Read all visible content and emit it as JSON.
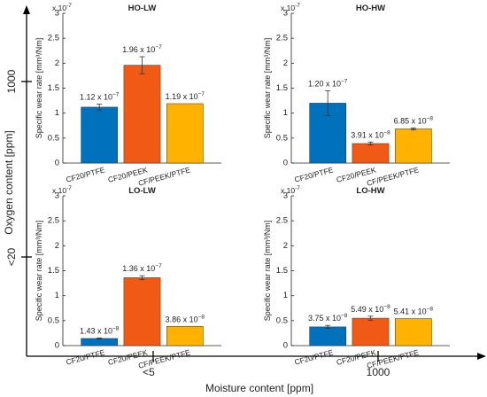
{
  "figure": {
    "x_axis_label": "Moisture content [ppm]",
    "y_axis_label": "Oxygen content [ppm]",
    "x_ticks": [
      "<5",
      "1000"
    ],
    "y_ticks": [
      "1000",
      "<20"
    ]
  },
  "chart_data": [
    {
      "type": "bar",
      "title": "HO-LW",
      "exponent_label": "x 10",
      "exponent_power": "-7",
      "ylabel": "Specific wear rate [mm³/Nm]",
      "ylim": [
        0,
        3e-07
      ],
      "yticks": [
        "0",
        "0.5",
        "1",
        "1.5",
        "2",
        "2.5",
        "3"
      ],
      "categories": [
        "CF20/PTFE",
        "CF20/PEEK",
        "CF/PEEK/PTFE"
      ],
      "values": [
        1.12e-07,
        1.96e-07,
        1.19e-07
      ],
      "errors": [
        6e-09,
        1.7e-08,
        0
      ],
      "labels": [
        "1.12 x 10",
        "1.96 x 10",
        "1.19 x 10"
      ],
      "label_powers": [
        "−7",
        "−7",
        "−7"
      ],
      "colors": [
        "#0072bd",
        "#f05a14",
        "#ffb300"
      ]
    },
    {
      "type": "bar",
      "title": "HO-HW",
      "exponent_label": "x 10",
      "exponent_power": "-7",
      "ylabel": "Specific wear rate [mm³/Nm]",
      "ylim": [
        0,
        3e-07
      ],
      "yticks": [
        "0",
        "0.5",
        "1",
        "1.5",
        "2",
        "2.5",
        "3"
      ],
      "categories": [
        "CF20/PTFE",
        "CF20/PEEK",
        "CF/PEEK/PTFE"
      ],
      "values": [
        1.2e-07,
        3.91e-08,
        6.85e-08
      ],
      "errors": [
        2.5e-08,
        3e-09,
        2e-09
      ],
      "labels": [
        "1.20 x 10",
        "3.91 x 10",
        "6.85 x 10"
      ],
      "label_powers": [
        "−7",
        "−8",
        "−8"
      ],
      "colors": [
        "#0072bd",
        "#f05a14",
        "#ffb300"
      ]
    },
    {
      "type": "bar",
      "title": "LO-LW",
      "exponent_label": "x 10",
      "exponent_power": "-7",
      "ylabel": "Specific wear rate [mm³/Nm]",
      "ylim": [
        0,
        3e-07
      ],
      "yticks": [
        "0",
        "0.5",
        "1",
        "1.5",
        "2",
        "2.5",
        "3"
      ],
      "categories": [
        "CF20/PTFE",
        "CF20/PEEK",
        "CF/PEEK/PTFE"
      ],
      "values": [
        1.43e-08,
        1.36e-07,
        3.86e-08
      ],
      "errors": [
        1e-09,
        4e-09,
        0
      ],
      "labels": [
        "1.43 x 10",
        "1.36 x 10",
        "3.86 x 10"
      ],
      "label_powers": [
        "−8",
        "−7",
        "−8"
      ],
      "colors": [
        "#0072bd",
        "#f05a14",
        "#ffb300"
      ]
    },
    {
      "type": "bar",
      "title": "LO-HW",
      "exponent_label": "x 10",
      "exponent_power": "-7",
      "ylabel": "Specific wear rate [mm³/Nm]",
      "ylim": [
        0,
        3e-07
      ],
      "yticks": [
        "0",
        "0.5",
        "1",
        "1.5",
        "2",
        "2.5",
        "3"
      ],
      "categories": [
        "CF20/PTFE",
        "CF20/PEEK",
        "CF/PEEK/PTFE"
      ],
      "values": [
        3.75e-08,
        5.49e-08,
        5.41e-08
      ],
      "errors": [
        3e-09,
        4e-09,
        0
      ],
      "labels": [
        "3.75 x 10",
        "5.49 x 10",
        "5.41 x 10"
      ],
      "label_powers": [
        "−8",
        "−8",
        "−8"
      ],
      "colors": [
        "#0072bd",
        "#f05a14",
        "#ffb300"
      ]
    }
  ]
}
